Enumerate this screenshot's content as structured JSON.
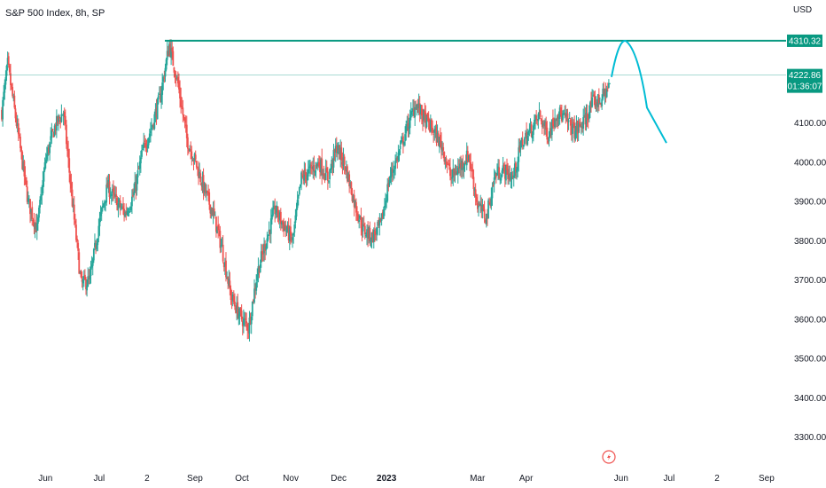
{
  "header": {
    "title": "S&P 500 Index, 8h, SP"
  },
  "colors": {
    "up": "#26a69a",
    "down": "#ef5350",
    "level_line": "#089981",
    "projection": "#00bcd4",
    "price_tag": "#089981",
    "grid": "#f0f3fa",
    "axis_text": "#131722"
  },
  "chart_data": {
    "type": "candlestick",
    "title": "S&P 500 Index, 8h, SP",
    "currency": "USD",
    "y_ticks": [
      "4100.00",
      "4000.00",
      "3900.00",
      "3800.00",
      "3700.00",
      "3600.00",
      "3500.00",
      "3400.00",
      "3300.00"
    ],
    "y_tick_values": [
      4100,
      4000,
      3900,
      3800,
      3700,
      3600,
      3500,
      3400,
      3300
    ],
    "ylim": [
      3200,
      4450
    ],
    "x_ticks": [
      "Jun",
      "Jul",
      "2",
      "Sep",
      "Oct",
      "Nov",
      "Dec",
      "2023",
      "Mar",
      "Apr",
      "Jun",
      "Jul",
      "2",
      "Sep"
    ],
    "x_tick_bold": [
      false,
      false,
      false,
      false,
      false,
      false,
      false,
      true,
      false,
      false,
      false,
      false,
      false,
      false
    ],
    "x_tick_positions": [
      0.055,
      0.12,
      0.178,
      0.236,
      0.293,
      0.352,
      0.41,
      0.468,
      0.578,
      0.637,
      0.752,
      0.81,
      0.868,
      0.928
    ],
    "anchors": [
      [
        0,
        4130
      ],
      [
        2,
        4250
      ],
      [
        5,
        4100
      ],
      [
        9,
        3900
      ],
      [
        12,
        3830
      ],
      [
        15,
        4010
      ],
      [
        18,
        4090
      ],
      [
        21,
        4130
      ],
      [
        24,
        3900
      ],
      [
        27,
        3690
      ],
      [
        30,
        3700
      ],
      [
        33,
        3840
      ],
      [
        36,
        3940
      ],
      [
        39,
        3900
      ],
      [
        42,
        3870
      ],
      [
        45,
        3920
      ],
      [
        48,
        4030
      ],
      [
        51,
        4090
      ],
      [
        54,
        4170
      ],
      [
        57,
        4300
      ],
      [
        60,
        4200
      ],
      [
        63,
        4060
      ],
      [
        66,
        4000
      ],
      [
        69,
        3930
      ],
      [
        72,
        3870
      ],
      [
        75,
        3780
      ],
      [
        78,
        3660
      ],
      [
        81,
        3610
      ],
      [
        84,
        3580
      ],
      [
        87,
        3720
      ],
      [
        90,
        3800
      ],
      [
        93,
        3880
      ],
      [
        96,
        3840
      ],
      [
        99,
        3800
      ],
      [
        102,
        3960
      ],
      [
        105,
        3980
      ],
      [
        108,
        4000
      ],
      [
        111,
        3960
      ],
      [
        114,
        4040
      ],
      [
        117,
        3990
      ],
      [
        120,
        3900
      ],
      [
        123,
        3830
      ],
      [
        126,
        3810
      ],
      [
        129,
        3840
      ],
      [
        132,
        3960
      ],
      [
        135,
        4020
      ],
      [
        138,
        4090
      ],
      [
        141,
        4150
      ],
      [
        144,
        4110
      ],
      [
        147,
        4080
      ],
      [
        150,
        4040
      ],
      [
        153,
        3960
      ],
      [
        156,
        3990
      ],
      [
        159,
        4020
      ],
      [
        162,
        3890
      ],
      [
        165,
        3860
      ],
      [
        168,
        3970
      ],
      [
        171,
        3980
      ],
      [
        174,
        3960
      ],
      [
        177,
        4050
      ],
      [
        180,
        4080
      ],
      [
        183,
        4120
      ],
      [
        186,
        4070
      ],
      [
        189,
        4130
      ],
      [
        192,
        4110
      ],
      [
        195,
        4080
      ],
      [
        198,
        4100
      ],
      [
        201,
        4150
      ],
      [
        204,
        4160
      ],
      [
        207,
        4200
      ]
    ],
    "price_levels": [
      {
        "label": "4310.32",
        "value": 4310.32
      },
      {
        "label": "4222.86",
        "value": 4222.86,
        "countdown": "01:36:07"
      }
    ],
    "projection_path": [
      [
        4222.86
      ],
      [
        4310.32
      ],
      [
        4050
      ]
    ],
    "event_icon": "flash-icon"
  }
}
